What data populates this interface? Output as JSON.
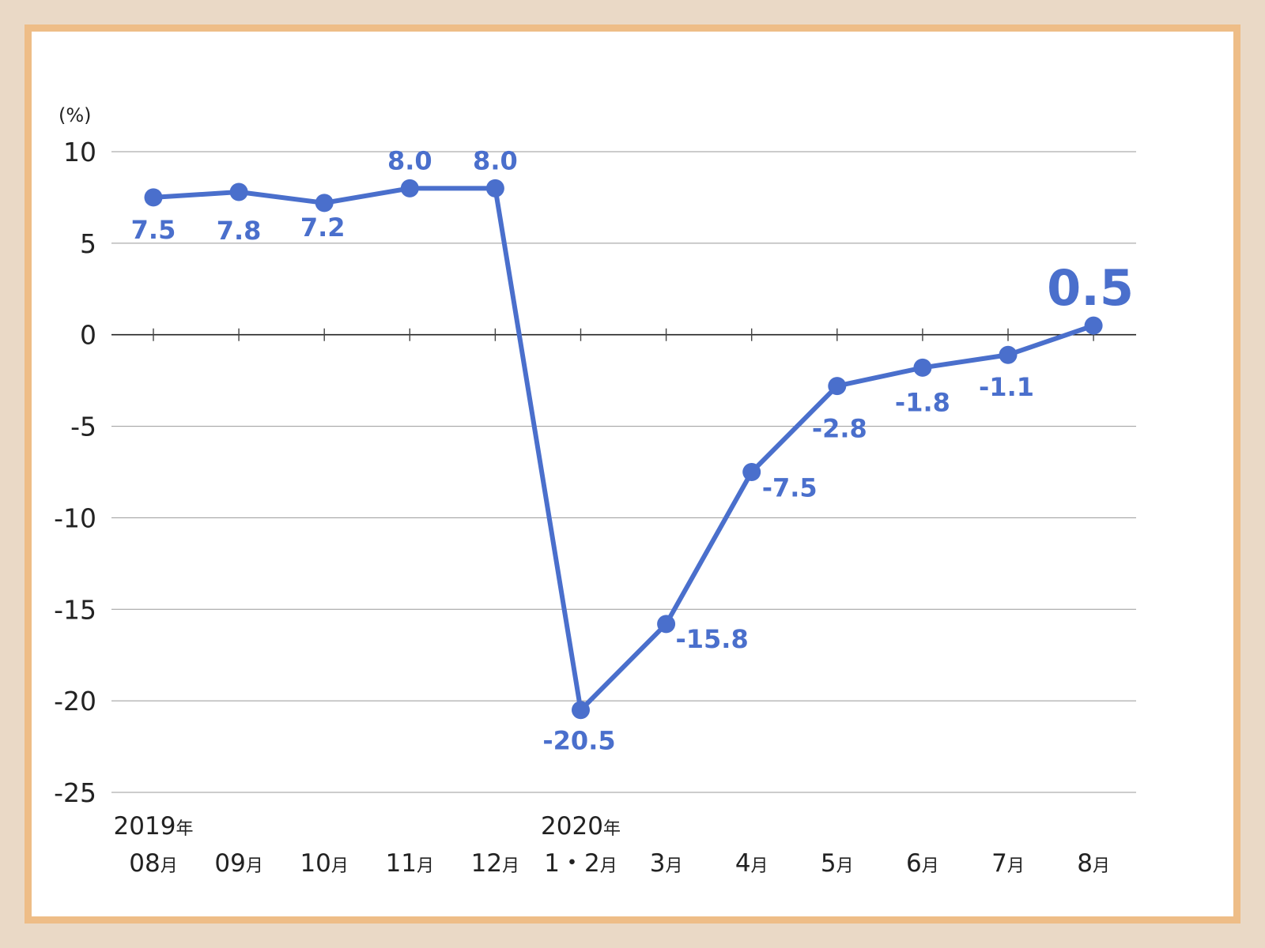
{
  "colors": {
    "line": "#4a6fcc",
    "frame_border": "#eebd87",
    "background": "#ead9c6",
    "grid": "#999999"
  },
  "chart_data": {
    "type": "line",
    "ylabel": "(%)",
    "ylim": [
      -25,
      10
    ],
    "yticks": [
      10,
      5,
      0,
      -5,
      -10,
      -15,
      -20,
      -25
    ],
    "grid": true,
    "legend": "none",
    "categories": [
      "2019年08月",
      "09月",
      "10月",
      "11月",
      "12月",
      "2020年1・2月",
      "3月",
      "4月",
      "5月",
      "6月",
      "7月",
      "8月"
    ],
    "category_labels": [
      {
        "year": "2019",
        "year_suffix": "年",
        "month": "08",
        "month_suffix": "月"
      },
      {
        "year": "",
        "year_suffix": "",
        "month": "09",
        "month_suffix": "月"
      },
      {
        "year": "",
        "year_suffix": "",
        "month": "10",
        "month_suffix": "月"
      },
      {
        "year": "",
        "year_suffix": "",
        "month": "11",
        "month_suffix": "月"
      },
      {
        "year": "",
        "year_suffix": "",
        "month": "12",
        "month_suffix": "月"
      },
      {
        "year": "2020",
        "year_suffix": "年",
        "month": "1・2",
        "month_suffix": "月"
      },
      {
        "year": "",
        "year_suffix": "",
        "month": "3",
        "month_suffix": "月"
      },
      {
        "year": "",
        "year_suffix": "",
        "month": "4",
        "month_suffix": "月"
      },
      {
        "year": "",
        "year_suffix": "",
        "month": "5",
        "month_suffix": "月"
      },
      {
        "year": "",
        "year_suffix": "",
        "month": "6",
        "month_suffix": "月"
      },
      {
        "year": "",
        "year_suffix": "",
        "month": "7",
        "month_suffix": "月"
      },
      {
        "year": "",
        "year_suffix": "",
        "month": "8",
        "month_suffix": "月"
      }
    ],
    "series": [
      {
        "values": [
          7.5,
          7.8,
          7.2,
          8.0,
          8.0,
          -20.5,
          -15.8,
          -7.5,
          -2.8,
          -1.8,
          -1.1,
          0.5
        ],
        "labels": [
          "7.5",
          "7.8",
          "7.2",
          "8.0",
          "8.0",
          "-20.5",
          "-15.8",
          "-7.5",
          "-2.8",
          "-1.8",
          "-1.1",
          "0.5"
        ],
        "highlight_last": true
      }
    ]
  }
}
